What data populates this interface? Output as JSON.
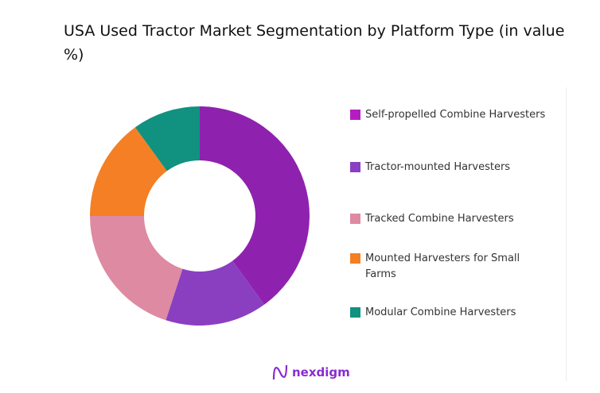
{
  "chart_data": {
    "type": "pie",
    "title": "USA Used Tractor Market Segmentation by Platform Type (in value %)",
    "donut": true,
    "categories": [
      "Self-propelled Combine Harvesters",
      "Tractor-mounted Harvesters",
      "Tracked Combine Harvesters",
      "Mounted Harvesters for Small Farms",
      "Modular Combine Harvesters"
    ],
    "values": [
      40,
      15,
      20,
      15,
      10
    ],
    "colors": [
      "#8e22ae",
      "#8a3fc0",
      "#de8aa2",
      "#f47f24",
      "#11917f"
    ],
    "legend_colors": [
      "#b41ec0",
      "#8a3fc0",
      "#de8aa2",
      "#f47f24",
      "#11917f"
    ],
    "legend_position": "right"
  },
  "brand": {
    "logo_text": "nexdigm"
  }
}
